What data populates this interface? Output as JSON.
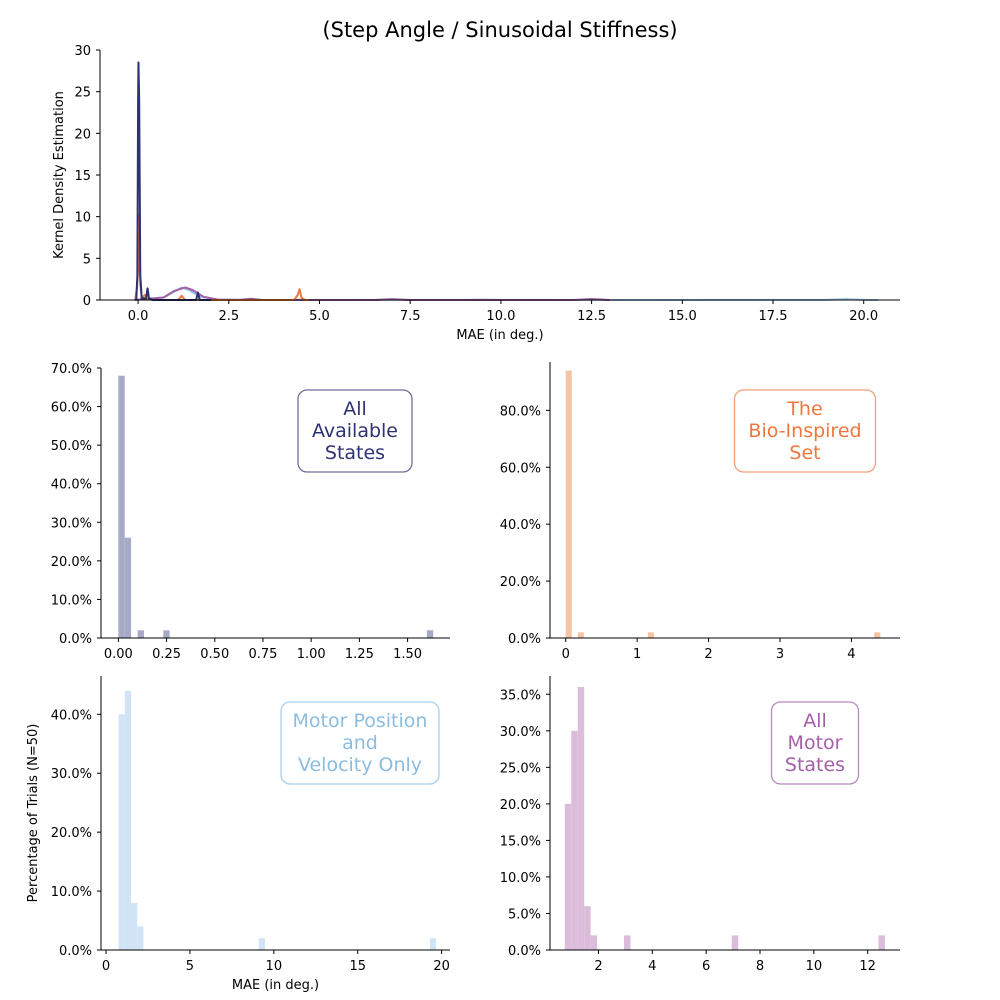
{
  "figure": {
    "title": "(Step Angle / Sinusoidal Stiffness)"
  },
  "chart_data": [
    {
      "type": "line",
      "title": "(Step Angle / Sinusoidal Stiffness)",
      "xlabel": "MAE (in deg.)",
      "ylabel": "Kernel Density Estimation",
      "xlim": [
        -1.05,
        21.0
      ],
      "ylim": [
        0,
        30
      ],
      "xticks": [
        0.0,
        2.5,
        5.0,
        7.5,
        10.0,
        12.5,
        15.0,
        17.5,
        20.0
      ],
      "xtick_labels": [
        "0.0",
        "2.5",
        "5.0",
        "7.5",
        "10.0",
        "12.5",
        "15.0",
        "17.5",
        "20.0"
      ],
      "yticks": [
        0,
        5,
        10,
        15,
        20,
        25,
        30
      ],
      "ytick_labels": [
        "0",
        "5",
        "10",
        "15",
        "20",
        "25",
        "30"
      ],
      "grid": false,
      "series": [
        {
          "color": "#97c3e8",
          "points": [
            [
              -0.1,
              0
            ],
            [
              0.1,
              0.1
            ],
            [
              0.7,
              0.3
            ],
            [
              1.0,
              1.0
            ],
            [
              1.2,
              1.5
            ],
            [
              1.4,
              1.2
            ],
            [
              1.7,
              0.4
            ],
            [
              2.2,
              0.05
            ],
            [
              3.0,
              0
            ],
            [
              9.0,
              0.02
            ],
            [
              9.5,
              0.05
            ],
            [
              10.0,
              0.02
            ],
            [
              14.0,
              0
            ],
            [
              19.0,
              0.02
            ],
            [
              19.5,
              0.1
            ],
            [
              20.0,
              0.02
            ],
            [
              20.4,
              0
            ]
          ]
        },
        {
          "color": "#a35fa8",
          "points": [
            [
              -0.1,
              0
            ],
            [
              0.2,
              0.1
            ],
            [
              0.7,
              0.3
            ],
            [
              1.0,
              1.1
            ],
            [
              1.3,
              1.5
            ],
            [
              1.5,
              1.2
            ],
            [
              1.8,
              0.4
            ],
            [
              2.2,
              0.05
            ],
            [
              2.8,
              0.02
            ],
            [
              3.1,
              0.15
            ],
            [
              3.4,
              0.02
            ],
            [
              6.5,
              0
            ],
            [
              7.0,
              0.1
            ],
            [
              7.5,
              0
            ],
            [
              12.0,
              0
            ],
            [
              12.5,
              0.12
            ],
            [
              13.0,
              0
            ]
          ]
        },
        {
          "color": "#ef773e",
          "points": [
            [
              -0.08,
              0
            ],
            [
              -0.03,
              1.5
            ],
            [
              0.0,
              3.5
            ],
            [
              0.02,
              10.3
            ],
            [
              0.04,
              8.0
            ],
            [
              0.06,
              2.0
            ],
            [
              0.1,
              0.3
            ],
            [
              0.2,
              0.6
            ],
            [
              0.25,
              0.2
            ],
            [
              0.4,
              0
            ],
            [
              1.1,
              0
            ],
            [
              1.2,
              0.5
            ],
            [
              1.3,
              0
            ],
            [
              4.3,
              0
            ],
            [
              4.4,
              0.6
            ],
            [
              4.45,
              1.3
            ],
            [
              4.5,
              0.3
            ],
            [
              4.6,
              0
            ],
            [
              4.7,
              0
            ]
          ]
        },
        {
          "color": "#2d3273",
          "points": [
            [
              -0.05,
              0
            ],
            [
              -0.02,
              3.0
            ],
            [
              0.0,
              24.0
            ],
            [
              0.01,
              28.5
            ],
            [
              0.03,
              24.0
            ],
            [
              0.06,
              3.0
            ],
            [
              0.1,
              0.2
            ],
            [
              0.22,
              0.2
            ],
            [
              0.26,
              1.4
            ],
            [
              0.3,
              0.2
            ],
            [
              0.4,
              0
            ],
            [
              1.6,
              0
            ],
            [
              1.65,
              0.9
            ],
            [
              1.7,
              0
            ],
            [
              2.0,
              0
            ]
          ]
        }
      ]
    },
    {
      "type": "bar",
      "xlim": [
        -0.09,
        1.72
      ],
      "ylim": [
        0,
        0.7
      ],
      "xticks": [
        0.0,
        0.25,
        0.5,
        0.75,
        1.0,
        1.25,
        1.5
      ],
      "xtick_labels": [
        "0.00",
        "0.25",
        "0.50",
        "0.75",
        "1.00",
        "1.25",
        "1.50"
      ],
      "yticks": [
        0,
        0.1,
        0.2,
        0.3,
        0.4,
        0.5,
        0.6,
        0.7
      ],
      "ytick_labels": [
        "0.0%",
        "10.0%",
        "20.0%",
        "30.0%",
        "40.0%",
        "50.0%",
        "60.0%",
        "70.0%"
      ],
      "color": "#a7aac7",
      "bin_width": 0.033,
      "bars": [
        [
          0.0,
          0.68
        ],
        [
          0.033,
          0.26
        ],
        [
          0.1,
          0.02
        ],
        [
          0.233,
          0.02
        ],
        [
          1.6,
          0.02
        ]
      ],
      "annotation": {
        "lines": [
          "All",
          "Available",
          "States"
        ],
        "color": "#2d3273",
        "edge": "#6e6e96"
      }
    },
    {
      "type": "bar",
      "xlim": [
        -0.22,
        4.68
      ],
      "ylim": [
        0,
        0.97
      ],
      "xticks": [
        0,
        1,
        2,
        3,
        4
      ],
      "xtick_labels": [
        "0",
        "1",
        "2",
        "3",
        "4"
      ],
      "yticks": [
        0,
        0.2,
        0.4,
        0.6,
        0.8
      ],
      "ytick_labels": [
        "0.0%",
        "20.0%",
        "40.0%",
        "60.0%",
        "80.0%"
      ],
      "color": "#f7c3a5",
      "bin_width": 0.085,
      "bars": [
        [
          0.0,
          0.94
        ],
        [
          0.17,
          0.02
        ],
        [
          1.15,
          0.02
        ],
        [
          4.32,
          0.02
        ]
      ],
      "annotation": {
        "lines": [
          "The",
          "Bio-Inspired",
          "Set"
        ],
        "color": "#ef773e",
        "edge": "#f2a07a"
      }
    },
    {
      "type": "bar",
      "xlabel": "MAE (in deg.)",
      "ylabel": "Percentage of Trials (N=50)",
      "xlim": [
        -0.3,
        20.5
      ],
      "ylim": [
        0,
        0.465
      ],
      "xticks": [
        0,
        5,
        10,
        15,
        20
      ],
      "xtick_labels": [
        "0",
        "5",
        "10",
        "15",
        "20"
      ],
      "yticks": [
        0,
        0.1,
        0.2,
        0.3,
        0.4
      ],
      "ytick_labels": [
        "0.0%",
        "10.0%",
        "20.0%",
        "30.0%",
        "40.0%"
      ],
      "color": "#d1e4f5",
      "bin_width": 0.37,
      "bars": [
        [
          0.75,
          0.4
        ],
        [
          1.12,
          0.44
        ],
        [
          1.49,
          0.08
        ],
        [
          1.86,
          0.04
        ],
        [
          9.1,
          0.02
        ],
        [
          19.3,
          0.02
        ]
      ],
      "annotation": {
        "lines": [
          "Motor Position",
          "and",
          "Velocity Only"
        ],
        "color": "#8bbde3",
        "edge": "#a9cfee"
      }
    },
    {
      "type": "bar",
      "xlim": [
        0.2,
        13.2
      ],
      "ylim": [
        0,
        0.375
      ],
      "xticks": [
        2,
        4,
        6,
        8,
        10,
        12
      ],
      "xtick_labels": [
        "2",
        "4",
        "6",
        "8",
        "10",
        "12"
      ],
      "yticks": [
        0,
        0.05,
        0.1,
        0.15,
        0.2,
        0.25,
        0.3,
        0.35
      ],
      "ytick_labels": [
        "0.0%",
        "5.0%",
        "10.0%",
        "15.0%",
        "20.0%",
        "25.0%",
        "30.0%",
        "35.0%"
      ],
      "color": "#dbbcda",
      "bin_width": 0.24,
      "bars": [
        [
          0.75,
          0.2
        ],
        [
          0.99,
          0.3
        ],
        [
          1.23,
          0.36
        ],
        [
          1.47,
          0.06
        ],
        [
          1.71,
          0.02
        ],
        [
          2.95,
          0.02
        ],
        [
          6.95,
          0.02
        ],
        [
          12.4,
          0.02
        ]
      ],
      "annotation": {
        "lines": [
          "All",
          "Motor",
          "States"
        ],
        "color": "#a35fa8",
        "edge": "#b98bbc"
      }
    }
  ]
}
